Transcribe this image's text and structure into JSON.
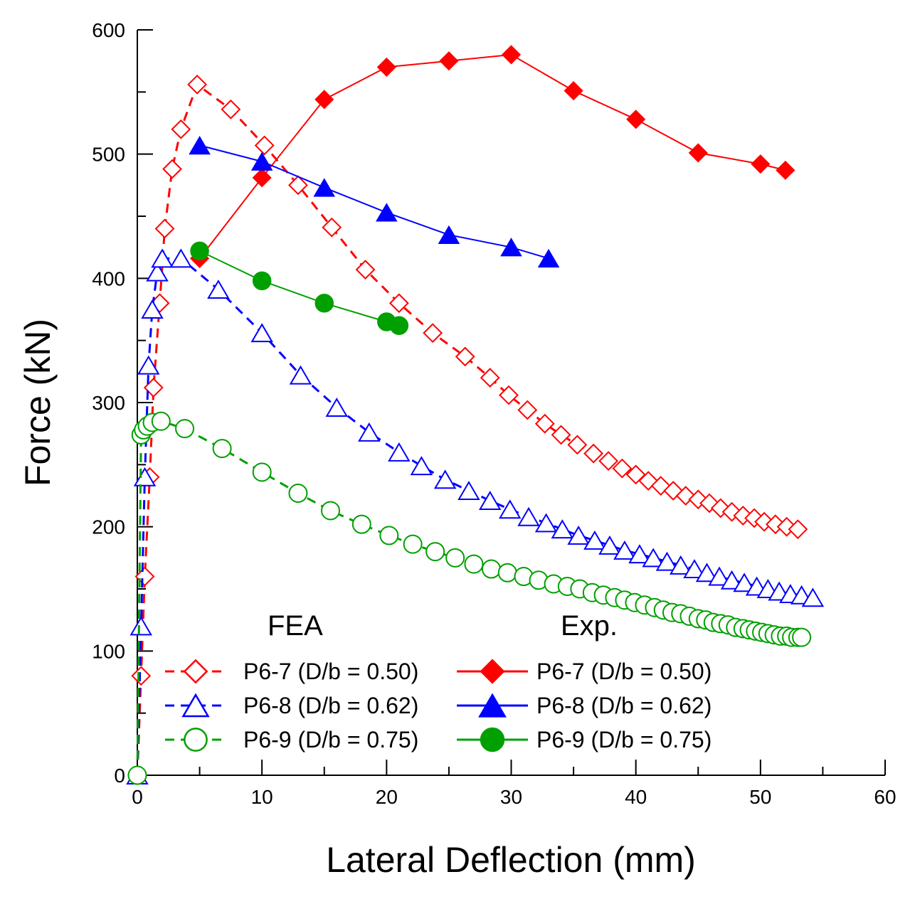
{
  "chart_data": {
    "type": "line",
    "title": "",
    "xlabel": "Lateral Deflection (mm)",
    "ylabel": "Force (kN)",
    "xlim": [
      0,
      60
    ],
    "ylim": [
      0,
      600
    ],
    "xticks": [
      0,
      10,
      20,
      30,
      40,
      50,
      60
    ],
    "yticks": [
      0,
      100,
      200,
      300,
      400,
      500,
      600
    ],
    "grid": false,
    "legend": {
      "placement": "bottom-center",
      "group_headers": [
        "FEA",
        "Exp."
      ]
    },
    "series": [
      {
        "name": "P6-7 (D/b = 0.50)",
        "group": "FEA",
        "color": "#ff0000",
        "marker": "diamond-open",
        "line": "dashed",
        "x": [
          0,
          0.3,
          0.6,
          1.0,
          1.3,
          1.8,
          2.2,
          2.8,
          3.5,
          4.8,
          7.5,
          10.2,
          12.9,
          15.6,
          18.3,
          21.0,
          23.7,
          26.3,
          28.3,
          29.8,
          31.3,
          32.7,
          34.0,
          35.3,
          36.6,
          37.8,
          38.9,
          40.0,
          41.0,
          42.0,
          43.0,
          44.0,
          45.0,
          45.9,
          46.8,
          47.7,
          48.6,
          49.5,
          50.3,
          51.2,
          52.1,
          53.0
        ],
        "y": [
          0,
          80,
          160,
          240,
          312,
          380,
          440,
          488,
          520,
          556,
          536,
          507,
          475,
          441,
          407,
          380,
          356,
          337,
          320,
          306,
          294,
          283,
          274,
          266,
          259,
          253,
          247,
          242,
          237,
          233,
          229,
          225,
          222,
          219,
          215,
          212,
          209,
          207,
          204,
          202,
          200,
          198
        ]
      },
      {
        "name": "P6-8 (D/b = 0.62)",
        "group": "FEA",
        "color": "#0000ff",
        "marker": "triangle-open",
        "line": "dashed",
        "x": [
          0,
          0.3,
          0.6,
          0.9,
          1.2,
          1.6,
          2.0,
          3.5,
          6.5,
          10.0,
          13.1,
          16.0,
          18.6,
          21.0,
          22.8,
          24.7,
          26.6,
          28.3,
          29.9,
          31.4,
          32.8,
          34.1,
          35.4,
          36.7,
          37.9,
          39.1,
          40.3,
          41.4,
          42.5,
          43.6,
          44.7,
          45.7,
          46.7,
          47.7,
          48.7,
          49.7,
          50.6,
          51.5,
          52.4,
          53.3,
          54.2
        ],
        "y": [
          0,
          120,
          240,
          330,
          375,
          405,
          416,
          416,
          391,
          356,
          322,
          296,
          276,
          260,
          249,
          238,
          229,
          221,
          214,
          208,
          203,
          198,
          193,
          189,
          185,
          181,
          178,
          175,
          172,
          169,
          166,
          163,
          160,
          157,
          155,
          152,
          150,
          148,
          146,
          145,
          143
        ]
      },
      {
        "name": "P6-9 (D/b = 0.75)",
        "group": "FEA",
        "color": "#00a000",
        "marker": "circle-open",
        "line": "dashed",
        "x": [
          0,
          0.3,
          0.5,
          0.8,
          1.2,
          1.9,
          3.8,
          6.8,
          10.0,
          12.9,
          15.5,
          18.0,
          20.2,
          22.1,
          23.9,
          25.5,
          27.0,
          28.4,
          29.7,
          31.0,
          32.2,
          33.4,
          34.5,
          35.5,
          36.5,
          37.4,
          38.3,
          39.1,
          39.9,
          40.7,
          41.5,
          42.2,
          42.9,
          43.6,
          44.3,
          45.0,
          45.6,
          46.2,
          46.8,
          47.4,
          48.0,
          48.6,
          49.1,
          49.6,
          50.1,
          50.6,
          51.1,
          51.6,
          52.1,
          52.5,
          53.0,
          53.3
        ],
        "y": [
          0,
          274,
          278,
          281,
          284,
          285,
          279,
          263,
          244,
          227,
          213,
          202,
          193,
          186,
          180,
          175,
          170,
          166,
          163,
          160,
          157,
          154,
          152,
          150,
          147,
          145,
          143,
          141,
          139,
          137,
          135,
          133,
          131,
          130,
          128,
          126,
          125,
          123,
          122,
          121,
          119,
          118,
          117,
          116,
          115,
          114,
          113,
          112,
          112,
          111,
          111,
          111
        ]
      },
      {
        "name": "P6-7 (D/b = 0.50)",
        "group": "Exp.",
        "color": "#ff0000",
        "marker": "diamond-filled",
        "line": "solid",
        "x": [
          5,
          10,
          15,
          20,
          25,
          30,
          35,
          40,
          45,
          50,
          52
        ],
        "y": [
          416,
          481,
          544,
          570,
          575,
          580,
          551,
          528,
          501,
          492,
          487
        ]
      },
      {
        "name": "P6-8 (D/b = 0.62)",
        "group": "Exp.",
        "color": "#0000ff",
        "marker": "triangle-filled",
        "line": "solid",
        "x": [
          5,
          10,
          15,
          20,
          25,
          30,
          33
        ],
        "y": [
          507,
          494,
          473,
          453,
          435,
          425,
          416
        ]
      },
      {
        "name": "P6-9 (D/b = 0.75)",
        "group": "Exp.",
        "color": "#00a000",
        "marker": "circle-filled",
        "line": "solid",
        "x": [
          5,
          10,
          15,
          20,
          21
        ],
        "y": [
          422,
          398,
          380,
          365,
          362
        ]
      }
    ]
  }
}
